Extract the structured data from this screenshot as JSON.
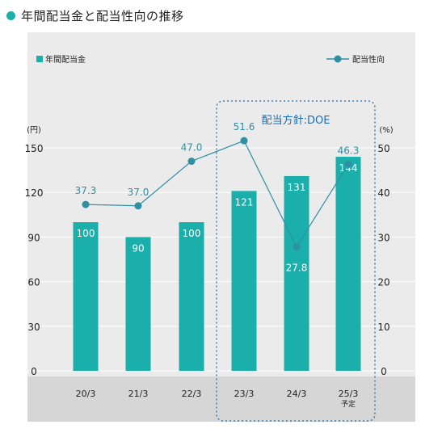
{
  "page": {
    "title": "年間配当金と配当性向の推移",
    "accent_color": "#1aafaa"
  },
  "chart_data": {
    "type": "bar",
    "categories": [
      "20/3",
      "21/3",
      "22/3",
      "23/3",
      "24/3",
      "25/3"
    ],
    "category_notes": [
      "",
      "",
      "",
      "",
      "",
      "予定"
    ],
    "series": [
      {
        "name": "年間配当金",
        "type": "bar",
        "axis": "left",
        "color": "#1aafaa",
        "values": [
          100,
          90,
          100,
          121,
          131,
          144
        ],
        "labels": [
          "100",
          "90",
          "100",
          "121",
          "131",
          "144"
        ]
      },
      {
        "name": "配当性向",
        "type": "line",
        "axis": "right",
        "color": "#2f8fa3",
        "values": [
          37.3,
          37.0,
          47.0,
          51.6,
          27.8,
          46.3
        ],
        "labels": [
          "37.3",
          "37.0",
          "47.0",
          "51.6",
          "27.8",
          "46.3"
        ]
      }
    ],
    "y_left": {
      "unit": "(円)",
      "ticks": [
        "0",
        "30",
        "60",
        "90",
        "120",
        "150"
      ],
      "ylim": [
        0,
        150
      ]
    },
    "y_right": {
      "unit": "(%)",
      "ticks": [
        "0",
        "10",
        "20",
        "30",
        "40",
        "50"
      ],
      "ylim": [
        0,
        50
      ]
    },
    "annotation": {
      "label": "配当方針:DOE",
      "categories": [
        "23/3",
        "24/3",
        "25/3"
      ],
      "color": "#1a6fb0"
    },
    "legend_placement": "top",
    "background": "#ebebeb",
    "grid": true
  }
}
